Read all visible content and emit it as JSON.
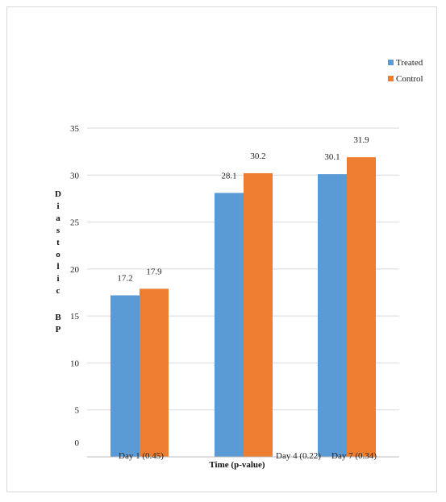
{
  "chart_data": {
    "type": "bar",
    "title": "",
    "xlabel": "Time (p-value)",
    "ylabel": "Diastolic BP",
    "ylim": [
      0,
      35
    ],
    "yticks": [
      0,
      5,
      10,
      15,
      20,
      25,
      30,
      35
    ],
    "grid": true,
    "legend_position": "top-right",
    "categories": [
      "Day 1 (0.45)",
      "Day 4 (0.22)",
      "Day 7 (0.34)"
    ],
    "series": [
      {
        "name": "Treated",
        "color": "#5B9BD5",
        "values": [
          17.2,
          28.1,
          30.1
        ]
      },
      {
        "name": "Control",
        "color": "#ED7D31",
        "values": [
          17.9,
          30.2,
          31.9
        ]
      }
    ]
  }
}
